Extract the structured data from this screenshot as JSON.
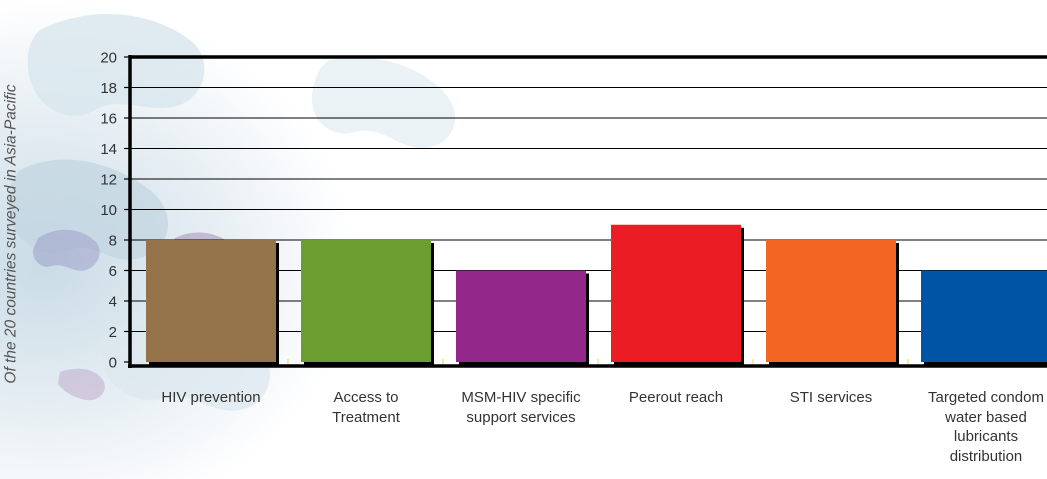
{
  "chart_data": {
    "type": "bar",
    "title": "",
    "ylabel": "Of the 20 countries surveyed in Asia-Pacific",
    "xlabel": "",
    "ylim": [
      0,
      20
    ],
    "yticks": [
      0,
      2,
      4,
      6,
      8,
      10,
      12,
      14,
      16,
      18,
      20
    ],
    "categories": [
      "HIV prevention",
      "Access to Treatment",
      "MSM-HIV specific support services",
      "Peerout reach",
      "STI services",
      "Targeted condom water based lubricants distribution"
    ],
    "values": [
      8,
      8,
      6,
      9,
      8,
      6
    ],
    "colors": [
      "#94734a",
      "#6c9d31",
      "#93288a",
      "#ec1c24",
      "#f26522",
      "#0054a6"
    ],
    "grid": true,
    "legend": "none"
  }
}
